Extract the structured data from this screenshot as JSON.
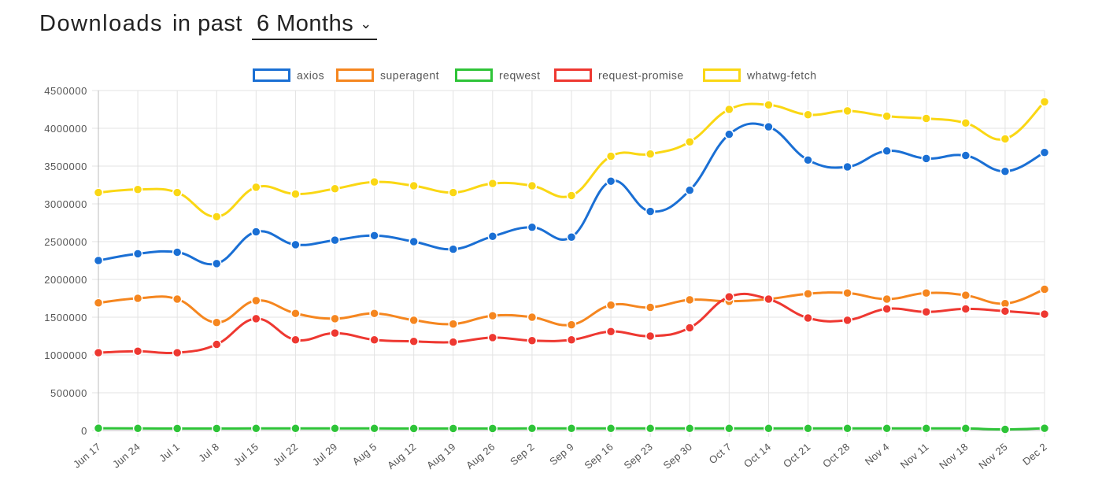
{
  "header": {
    "title": "Downloads",
    "subtitle": "in past",
    "range_value": "6 Months"
  },
  "chart_data": {
    "type": "line",
    "x": [
      "Jun 17",
      "Jun 24",
      "Jul 1",
      "Jul 8",
      "Jul 15",
      "Jul 22",
      "Jul 29",
      "Aug 5",
      "Aug 12",
      "Aug 19",
      "Aug 26",
      "Sep 2",
      "Sep 9",
      "Sep 16",
      "Sep 23",
      "Sep 30",
      "Oct 7",
      "Oct 14",
      "Oct 21",
      "Oct 28",
      "Nov 4",
      "Nov 11",
      "Nov 18",
      "Nov 25",
      "Dec 2"
    ],
    "ylim": [
      0,
      4500000
    ],
    "yticks": [
      0,
      500000,
      1000000,
      1500000,
      2000000,
      2500000,
      3000000,
      3500000,
      4000000,
      4500000
    ],
    "grid": true,
    "legend_position": "top",
    "series": [
      {
        "name": "axios",
        "color": "#1a6fd4",
        "values": [
          2250000,
          2340000,
          2360000,
          2210000,
          2630000,
          2460000,
          2520000,
          2580000,
          2500000,
          2400000,
          2570000,
          2690000,
          2560000,
          3300000,
          2900000,
          3180000,
          3920000,
          4020000,
          3580000,
          3490000,
          3700000,
          3600000,
          3640000,
          3430000,
          3680000
        ]
      },
      {
        "name": "superagent",
        "color": "#f5861f",
        "values": [
          1690000,
          1750000,
          1740000,
          1430000,
          1720000,
          1550000,
          1480000,
          1550000,
          1460000,
          1410000,
          1520000,
          1500000,
          1400000,
          1660000,
          1630000,
          1730000,
          1710000,
          1740000,
          1810000,
          1820000,
          1740000,
          1820000,
          1790000,
          1680000,
          1870000
        ]
      },
      {
        "name": "reqwest",
        "color": "#2ec438",
        "values": [
          30000,
          28000,
          27000,
          27000,
          28000,
          28000,
          28000,
          28000,
          27000,
          27000,
          27000,
          28000,
          28000,
          28000,
          28000,
          28000,
          28000,
          28000,
          28000,
          28000,
          28000,
          28000,
          28000,
          15000,
          30000
        ]
      },
      {
        "name": "request-promise",
        "color": "#ee3831",
        "values": [
          1030000,
          1050000,
          1030000,
          1140000,
          1480000,
          1200000,
          1290000,
          1200000,
          1180000,
          1170000,
          1230000,
          1190000,
          1200000,
          1310000,
          1250000,
          1360000,
          1770000,
          1740000,
          1490000,
          1460000,
          1610000,
          1570000,
          1610000,
          1580000,
          1540000
        ]
      },
      {
        "name": "whatwg-fetch",
        "color": "#fad714",
        "values": [
          3150000,
          3190000,
          3150000,
          2830000,
          3220000,
          3130000,
          3200000,
          3290000,
          3240000,
          3150000,
          3270000,
          3240000,
          3110000,
          3630000,
          3660000,
          3820000,
          4250000,
          4310000,
          4180000,
          4230000,
          4160000,
          4130000,
          4070000,
          3860000,
          4350000
        ]
      }
    ]
  }
}
